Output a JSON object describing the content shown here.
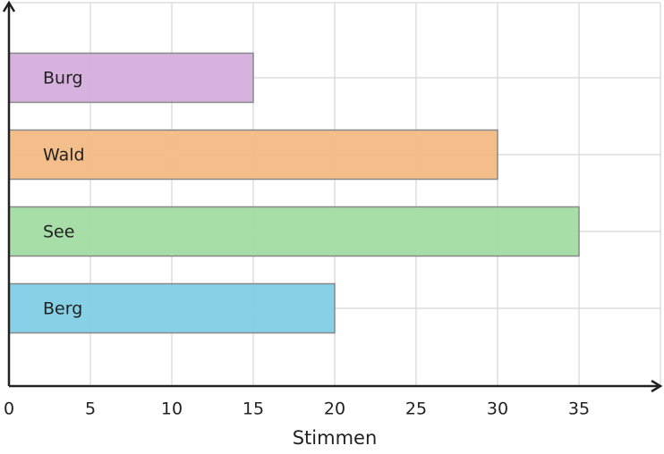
{
  "chart_data": {
    "type": "bar",
    "orientation": "horizontal",
    "x_label": "Stimmen",
    "categories": [
      "Berg",
      "See",
      "Wald",
      "Burg"
    ],
    "values": [
      20,
      35,
      30,
      15
    ],
    "colors": [
      "#7fcfe6",
      "#a2dca2",
      "#f2ba84",
      "#d6aedd"
    ],
    "xlim": [
      0,
      40
    ],
    "xticks": [
      0,
      5,
      10,
      15,
      20,
      25,
      30,
      35
    ],
    "grid": true
  }
}
